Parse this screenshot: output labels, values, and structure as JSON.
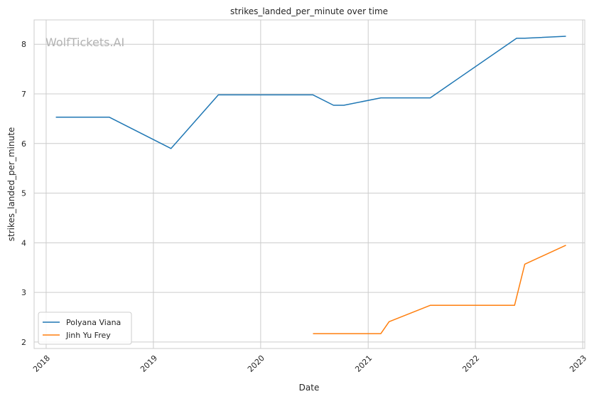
{
  "watermark": "WolfTickets.AI",
  "chart_data": {
    "type": "line",
    "title": "strikes_landed_per_minute over time",
    "xlabel": "Date",
    "ylabel": "strikes_landed_per_minute",
    "xlim": [
      "2017-11-21",
      "2023-01-08"
    ],
    "ylim": [
      1.87,
      8.49
    ],
    "x_ticks": [
      "2018",
      "2019",
      "2020",
      "2021",
      "2022",
      "2023"
    ],
    "y_ticks": [
      2,
      3,
      4,
      5,
      6,
      7,
      8
    ],
    "grid": true,
    "legend_position": "lower-left",
    "series": [
      {
        "name": "Polyana Viana",
        "color": "#1f77b4",
        "points": [
          {
            "x": "2018-02-03",
            "y": 6.53
          },
          {
            "x": "2018-08-04",
            "y": 6.53
          },
          {
            "x": "2019-03-02",
            "y": 5.9
          },
          {
            "x": "2019-08-10",
            "y": 6.98
          },
          {
            "x": "2020-06-27",
            "y": 6.98
          },
          {
            "x": "2020-09-05",
            "y": 6.77
          },
          {
            "x": "2020-10-10",
            "y": 6.77
          },
          {
            "x": "2021-02-13",
            "y": 6.92
          },
          {
            "x": "2021-07-31",
            "y": 6.92
          },
          {
            "x": "2022-05-21",
            "y": 8.12
          },
          {
            "x": "2022-06-18",
            "y": 8.12
          },
          {
            "x": "2022-11-05",
            "y": 8.16
          }
        ]
      },
      {
        "name": "Jinh Yu Frey",
        "color": "#ff7f0e",
        "points": [
          {
            "x": "2020-06-27",
            "y": 2.17
          },
          {
            "x": "2021-02-13",
            "y": 2.17
          },
          {
            "x": "2021-03-13",
            "y": 2.41
          },
          {
            "x": "2021-07-31",
            "y": 2.74
          },
          {
            "x": "2022-05-14",
            "y": 2.74
          },
          {
            "x": "2022-06-18",
            "y": 3.57
          },
          {
            "x": "2022-11-05",
            "y": 3.95
          }
        ]
      }
    ]
  }
}
